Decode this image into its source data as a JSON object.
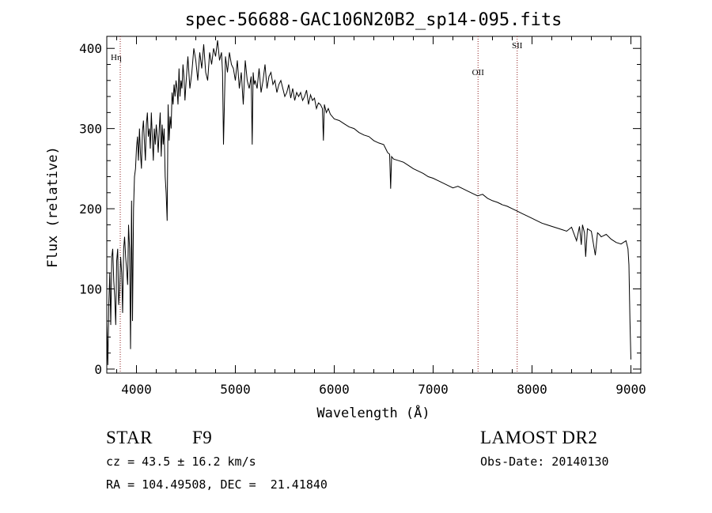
{
  "chart_data": {
    "type": "line",
    "title": "spec-56688-GAC106N20B2_sp14-095.fits",
    "xlabel": "Wavelength (Å)",
    "ylabel": "Flux (relative)",
    "xlim": [
      3700,
      9100
    ],
    "ylim": [
      -5,
      415
    ],
    "x_ticks": [
      4000,
      5000,
      6000,
      7000,
      8000,
      9000
    ],
    "y_ticks": [
      0,
      100,
      200,
      300,
      400
    ],
    "grid": false,
    "line_color": "#000000",
    "series": [
      {
        "x": [
          3700,
          3710,
          3720,
          3730,
          3740,
          3750,
          3760,
          3770,
          3780,
          3790,
          3800,
          3810,
          3820,
          3830,
          3840,
          3850,
          3860,
          3870,
          3880,
          3890,
          3900,
          3910,
          3920,
          3930,
          3940,
          3950,
          3960,
          3970,
          3980,
          3990,
          4000,
          4010,
          4020,
          4030,
          4040,
          4050,
          4060,
          4070,
          4080,
          4090,
          4100,
          4110,
          4120,
          4130,
          4140,
          4150,
          4160,
          4170,
          4180,
          4190,
          4200,
          4210,
          4220,
          4230,
          4240,
          4250,
          4260,
          4270,
          4280,
          4290,
          4300,
          4310,
          4320,
          4330,
          4340,
          4350,
          4360,
          4370,
          4380,
          4390,
          4400,
          4410,
          4420,
          4430,
          4440,
          4450,
          4460,
          4470,
          4480,
          4490,
          4500,
          4520,
          4540,
          4560,
          4580,
          4600,
          4620,
          4640,
          4660,
          4680,
          4700,
          4720,
          4740,
          4760,
          4780,
          4800,
          4820,
          4840,
          4860,
          4870,
          4880,
          4900,
          4920,
          4940,
          4960,
          4980,
          5000,
          5020,
          5040,
          5060,
          5080,
          5100,
          5120,
          5140,
          5160,
          5170,
          5180,
          5190,
          5200,
          5220,
          5240,
          5260,
          5280,
          5300,
          5320,
          5340,
          5360,
          5380,
          5400,
          5420,
          5440,
          5460,
          5480,
          5500,
          5520,
          5540,
          5560,
          5580,
          5600,
          5620,
          5640,
          5660,
          5680,
          5700,
          5720,
          5740,
          5760,
          5780,
          5800,
          5820,
          5840,
          5860,
          5880,
          5890,
          5900,
          5920,
          5940,
          5960,
          5980,
          6000,
          6050,
          6100,
          6150,
          6200,
          6250,
          6300,
          6350,
          6400,
          6450,
          6500,
          6520,
          6540,
          6560,
          6570,
          6580,
          6600,
          6650,
          6700,
          6750,
          6800,
          6850,
          6900,
          6950,
          7000,
          7050,
          7100,
          7150,
          7200,
          7250,
          7300,
          7350,
          7400,
          7450,
          7500,
          7550,
          7600,
          7650,
          7700,
          7750,
          7800,
          7850,
          7900,
          7950,
          8000,
          8050,
          8100,
          8150,
          8200,
          8250,
          8300,
          8350,
          8400,
          8450,
          8480,
          8498,
          8510,
          8530,
          8542,
          8560,
          8600,
          8640,
          8662,
          8680,
          8700,
          8750,
          8800,
          8850,
          8900,
          8950,
          8970,
          8980,
          8990,
          9000
        ],
        "y": [
          60,
          5,
          80,
          120,
          55,
          140,
          150,
          110,
          90,
          55,
          135,
          150,
          80,
          100,
          140,
          120,
          70,
          150,
          165,
          140,
          125,
          105,
          180,
          150,
          25,
          210,
          60,
          200,
          240,
          250,
          275,
          290,
          260,
          300,
          270,
          250,
          295,
          310,
          285,
          260,
          305,
          320,
          290,
          300,
          275,
          320,
          290,
          260,
          300,
          280,
          305,
          290,
          270,
          300,
          320,
          265,
          305,
          280,
          300,
          240,
          220,
          185,
          330,
          285,
          315,
          300,
          345,
          330,
          355,
          340,
          360,
          350,
          330,
          375,
          340,
          360,
          350,
          380,
          365,
          335,
          355,
          390,
          350,
          370,
          400,
          385,
          360,
          395,
          375,
          405,
          370,
          360,
          395,
          380,
          400,
          390,
          410,
          385,
          395,
          370,
          280,
          390,
          370,
          395,
          380,
          375,
          360,
          385,
          350,
          370,
          330,
          385,
          360,
          350,
          365,
          280,
          370,
          355,
          360,
          350,
          375,
          345,
          360,
          380,
          350,
          365,
          370,
          355,
          360,
          345,
          355,
          360,
          350,
          340,
          345,
          355,
          338,
          350,
          335,
          345,
          340,
          345,
          335,
          340,
          348,
          330,
          342,
          335,
          338,
          325,
          332,
          330,
          325,
          285,
          330,
          320,
          325,
          318,
          315,
          312,
          310,
          306,
          302,
          300,
          295,
          292,
          290,
          285,
          282,
          280,
          275,
          270,
          268,
          225,
          265,
          262,
          260,
          258,
          254,
          250,
          247,
          244,
          240,
          238,
          235,
          232,
          229,
          226,
          228,
          225,
          222,
          219,
          216,
          218,
          213,
          210,
          208,
          205,
          203,
          200,
          197,
          194,
          191,
          188,
          185,
          182,
          180,
          178,
          176,
          174,
          172,
          177,
          160,
          178,
          155,
          180,
          170,
          140,
          175,
          172,
          142,
          170,
          168,
          165,
          168,
          162,
          158,
          156,
          160,
          150,
          130,
          60,
          12
        ]
      }
    ],
    "annotations": [
      {
        "label": "Hη",
        "x": 3836
      },
      {
        "label": "OII",
        "x": 7454
      },
      {
        "label": "SII",
        "x": 7850
      }
    ]
  },
  "info": {
    "object_class": "STAR",
    "subclass": "F9",
    "survey": "LAMOST DR2",
    "redshift_line": "cz = 43.5 ± 16.2 km/s",
    "obs_date_line": "Obs-Date: 20140130",
    "coords_line": "RA = 104.49508, DEC =  21.41840"
  }
}
